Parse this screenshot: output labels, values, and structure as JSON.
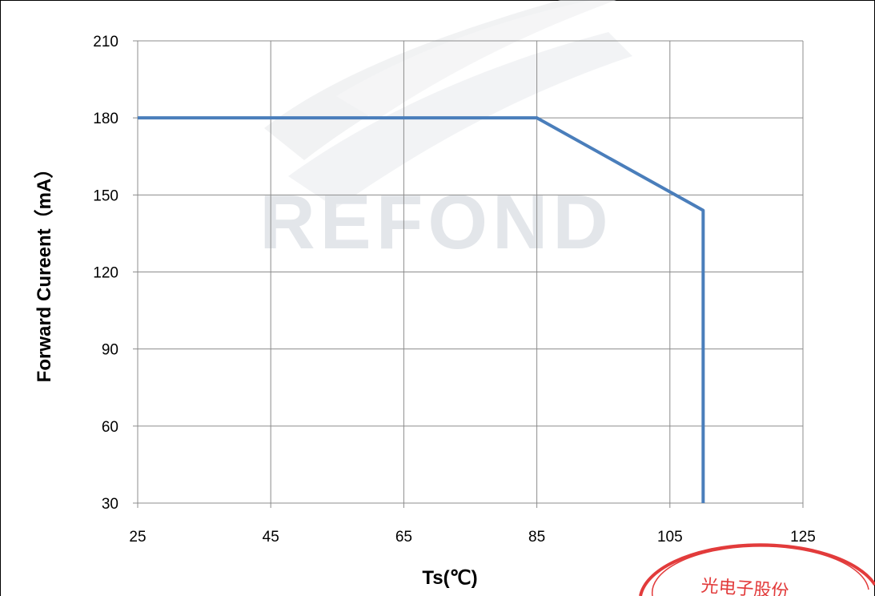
{
  "watermark": {
    "brand": "REFOND"
  },
  "seal": {
    "text": "光电子股份"
  },
  "colors": {
    "series": "#4a7ebb",
    "grid": "#8c8c8c",
    "seal": "#e23b3b",
    "watermark": "#e3e6ea"
  },
  "chart_data": {
    "type": "line",
    "xlabel": "Ts(℃)",
    "ylabel": "Forward Cureent（mA）",
    "xlim": [
      25,
      125
    ],
    "ylim": [
      30,
      210
    ],
    "xticks": [
      25,
      45,
      65,
      85,
      105,
      125
    ],
    "yticks": [
      30,
      60,
      90,
      120,
      150,
      180,
      210
    ],
    "grid": true,
    "legend": "none",
    "series": [
      {
        "x": [
          25,
          85,
          110,
          110
        ],
        "y": [
          180,
          180,
          144,
          30
        ]
      }
    ]
  }
}
